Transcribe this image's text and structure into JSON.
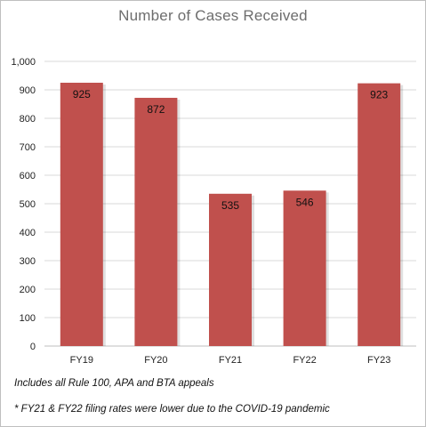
{
  "chart_data": {
    "type": "bar",
    "title": "Number of Cases Received",
    "categories": [
      "FY19",
      "FY20",
      "FY21",
      "FY22",
      "FY23"
    ],
    "values": [
      925,
      872,
      535,
      546,
      923
    ],
    "value_labels": [
      "925",
      "872",
      "535",
      "546",
      "923"
    ],
    "ylim": [
      0,
      1000
    ],
    "yticks": [
      0,
      100,
      200,
      300,
      400,
      500,
      600,
      700,
      800,
      900,
      1000
    ],
    "ytick_labels": [
      "0",
      "100",
      "200",
      "300",
      "400",
      "500",
      "600",
      "700",
      "800",
      "900",
      "1,000"
    ],
    "xlabel": "",
    "ylabel": "",
    "grid": true,
    "bar_color": "#c0504d",
    "grid_color": "#d9d9d9"
  },
  "notes": {
    "line1": "Includes all Rule 100, APA and BTA appeals",
    "line2": "* FY21 & FY22 filing rates were lower due to the COVID-19 pandemic"
  }
}
